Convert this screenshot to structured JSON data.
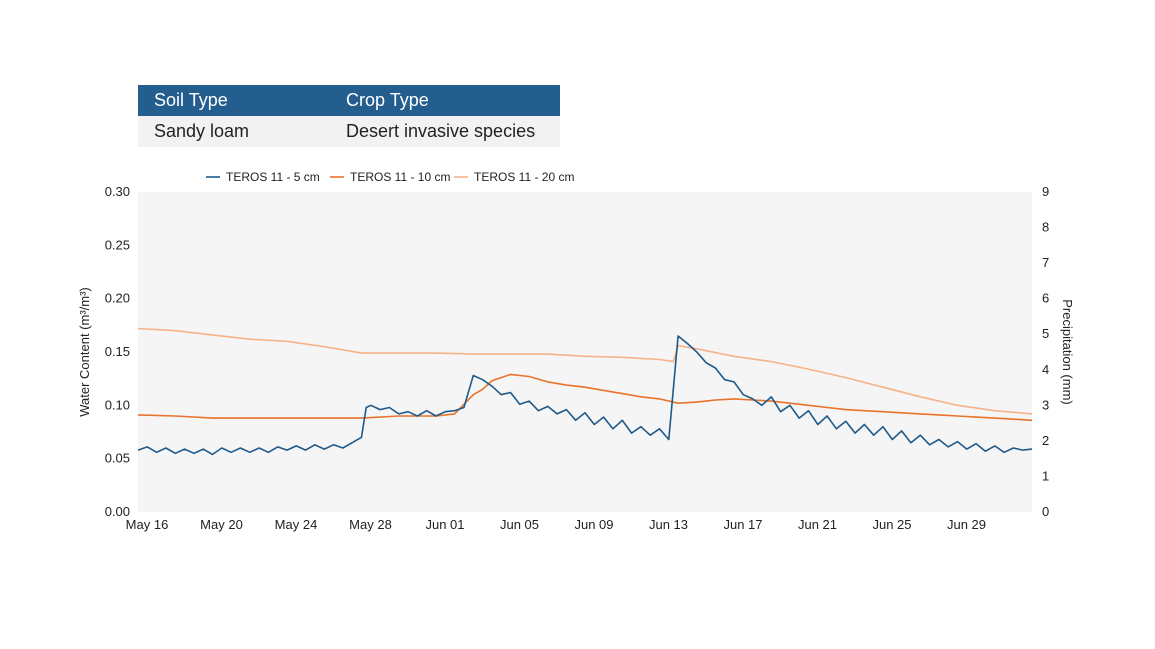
{
  "info_table": {
    "headers": [
      "Soil Type",
      "Crop Type"
    ],
    "values": [
      "Sandy loam",
      "Desert invasive species"
    ]
  },
  "colors": {
    "s5": "#1f5a8a",
    "s10": "#e8732a",
    "s20": "#f5b387",
    "plot_bg": "#f5f5f5",
    "table_header": "#245e8f"
  },
  "chart_data": {
    "type": "line",
    "xlabel": "",
    "ylabel": "Water Content (m³/m³)",
    "y2label": "Precipitation (mm)",
    "ylim": [
      0,
      0.3
    ],
    "y2lim": [
      0,
      9
    ],
    "yticks": [
      "0.00",
      "0.05",
      "0.10",
      "0.15",
      "0.20",
      "0.25",
      "0.30"
    ],
    "y2ticks": [
      "0",
      "1",
      "2",
      "3",
      "4",
      "5",
      "6",
      "7",
      "8",
      "9"
    ],
    "xlim": [
      "2023-05-16",
      "2023-07-03"
    ],
    "xticks": [
      {
        "date": "2023-05-16",
        "label": "May 16"
      },
      {
        "date": "2023-05-20",
        "label": "May 20"
      },
      {
        "date": "2023-05-24",
        "label": "May 24"
      },
      {
        "date": "2023-05-28",
        "label": "May 28"
      },
      {
        "date": "2023-06-01",
        "label": "Jun 01"
      },
      {
        "date": "2023-06-05",
        "label": "Jun 05"
      },
      {
        "date": "2023-06-09",
        "label": "Jun 09"
      },
      {
        "date": "2023-06-13",
        "label": "Jun 13"
      },
      {
        "date": "2023-06-17",
        "label": "Jun 17"
      },
      {
        "date": "2023-06-21",
        "label": "Jun 21"
      },
      {
        "date": "2023-06-25",
        "label": "Jun 25"
      },
      {
        "date": "2023-06-29",
        "label": "Jun 29"
      }
    ],
    "legend_position": "top-left",
    "series": [
      {
        "name": "TEROS 11 - 5 cm",
        "color": "#1f5a8a",
        "points": [
          [
            "2023-05-16",
            0.058
          ],
          [
            "2023-05-16T12:00",
            0.061
          ],
          [
            "2023-05-17",
            0.056
          ],
          [
            "2023-05-17T12:00",
            0.06
          ],
          [
            "2023-05-18",
            0.055
          ],
          [
            "2023-05-18T12:00",
            0.059
          ],
          [
            "2023-05-19",
            0.055
          ],
          [
            "2023-05-19T12:00",
            0.059
          ],
          [
            "2023-05-20",
            0.054
          ],
          [
            "2023-05-20T12:00",
            0.06
          ],
          [
            "2023-05-21",
            0.056
          ],
          [
            "2023-05-21T12:00",
            0.06
          ],
          [
            "2023-05-22",
            0.056
          ],
          [
            "2023-05-22T12:00",
            0.06
          ],
          [
            "2023-05-23",
            0.056
          ],
          [
            "2023-05-23T12:00",
            0.061
          ],
          [
            "2023-05-24",
            0.058
          ],
          [
            "2023-05-24T12:00",
            0.062
          ],
          [
            "2023-05-25",
            0.058
          ],
          [
            "2023-05-25T12:00",
            0.063
          ],
          [
            "2023-05-26",
            0.059
          ],
          [
            "2023-05-26T12:00",
            0.063
          ],
          [
            "2023-05-27",
            0.06
          ],
          [
            "2023-05-27T12:00",
            0.065
          ],
          [
            "2023-05-28",
            0.07
          ],
          [
            "2023-05-28T06:00",
            0.098
          ],
          [
            "2023-05-28T12:00",
            0.1
          ],
          [
            "2023-05-29",
            0.096
          ],
          [
            "2023-05-29T12:00",
            0.098
          ],
          [
            "2023-05-30",
            0.092
          ],
          [
            "2023-05-30T12:00",
            0.094
          ],
          [
            "2023-05-31",
            0.09
          ],
          [
            "2023-05-31T12:00",
            0.095
          ],
          [
            "2023-06-01",
            0.09
          ],
          [
            "2023-06-01T12:00",
            0.094
          ],
          [
            "2023-06-02",
            0.095
          ],
          [
            "2023-06-02T12:00",
            0.098
          ],
          [
            "2023-06-03",
            0.128
          ],
          [
            "2023-06-03T12:00",
            0.124
          ],
          [
            "2023-06-04",
            0.118
          ],
          [
            "2023-06-04T12:00",
            0.11
          ],
          [
            "2023-06-05",
            0.112
          ],
          [
            "2023-06-05T12:00",
            0.101
          ],
          [
            "2023-06-06",
            0.104
          ],
          [
            "2023-06-06T12:00",
            0.095
          ],
          [
            "2023-06-07",
            0.099
          ],
          [
            "2023-06-07T12:00",
            0.092
          ],
          [
            "2023-06-08",
            0.096
          ],
          [
            "2023-06-08T12:00",
            0.086
          ],
          [
            "2023-06-09",
            0.093
          ],
          [
            "2023-06-09T12:00",
            0.082
          ],
          [
            "2023-06-10",
            0.089
          ],
          [
            "2023-06-10T12:00",
            0.078
          ],
          [
            "2023-06-11",
            0.086
          ],
          [
            "2023-06-11T12:00",
            0.074
          ],
          [
            "2023-06-12",
            0.08
          ],
          [
            "2023-06-12T12:00",
            0.072
          ],
          [
            "2023-06-13",
            0.078
          ],
          [
            "2023-06-13T12:00",
            0.068
          ],
          [
            "2023-06-14",
            0.165
          ],
          [
            "2023-06-14T12:00",
            0.158
          ],
          [
            "2023-06-15",
            0.15
          ],
          [
            "2023-06-15T12:00",
            0.14
          ],
          [
            "2023-06-16",
            0.135
          ],
          [
            "2023-06-16T12:00",
            0.124
          ],
          [
            "2023-06-17",
            0.122
          ],
          [
            "2023-06-17T12:00",
            0.11
          ],
          [
            "2023-06-18",
            0.106
          ],
          [
            "2023-06-18T12:00",
            0.1
          ],
          [
            "2023-06-19",
            0.108
          ],
          [
            "2023-06-19T12:00",
            0.094
          ],
          [
            "2023-06-20",
            0.1
          ],
          [
            "2023-06-20T12:00",
            0.088
          ],
          [
            "2023-06-21",
            0.095
          ],
          [
            "2023-06-21T12:00",
            0.082
          ],
          [
            "2023-06-22",
            0.09
          ],
          [
            "2023-06-22T12:00",
            0.078
          ],
          [
            "2023-06-23",
            0.085
          ],
          [
            "2023-06-23T12:00",
            0.074
          ],
          [
            "2023-06-24",
            0.082
          ],
          [
            "2023-06-24T12:00",
            0.072
          ],
          [
            "2023-06-25",
            0.08
          ],
          [
            "2023-06-25T12:00",
            0.068
          ],
          [
            "2023-06-26",
            0.076
          ],
          [
            "2023-06-26T12:00",
            0.065
          ],
          [
            "2023-06-27",
            0.072
          ],
          [
            "2023-06-27T12:00",
            0.063
          ],
          [
            "2023-06-28",
            0.068
          ],
          [
            "2023-06-28T12:00",
            0.061
          ],
          [
            "2023-06-29",
            0.066
          ],
          [
            "2023-06-29T12:00",
            0.059
          ],
          [
            "2023-06-30",
            0.064
          ],
          [
            "2023-06-30T12:00",
            0.057
          ],
          [
            "2023-07-01",
            0.062
          ],
          [
            "2023-07-01T12:00",
            0.056
          ],
          [
            "2023-07-02",
            0.06
          ],
          [
            "2023-07-02T12:00",
            0.058
          ],
          [
            "2023-07-03",
            0.059
          ]
        ]
      },
      {
        "name": "TEROS 11 - 10 cm",
        "color": "#e8732a",
        "points": [
          [
            "2023-05-16",
            0.091
          ],
          [
            "2023-05-18",
            0.09
          ],
          [
            "2023-05-20",
            0.088
          ],
          [
            "2023-05-22",
            0.088
          ],
          [
            "2023-05-24",
            0.088
          ],
          [
            "2023-05-26",
            0.088
          ],
          [
            "2023-05-28",
            0.088
          ],
          [
            "2023-05-30",
            0.09
          ],
          [
            "2023-06-01",
            0.09
          ],
          [
            "2023-06-02",
            0.092
          ],
          [
            "2023-06-03",
            0.11
          ],
          [
            "2023-06-03T12:00",
            0.115
          ],
          [
            "2023-06-04",
            0.123
          ],
          [
            "2023-06-05",
            0.129
          ],
          [
            "2023-06-06",
            0.127
          ],
          [
            "2023-06-07",
            0.122
          ],
          [
            "2023-06-08",
            0.119
          ],
          [
            "2023-06-09",
            0.117
          ],
          [
            "2023-06-10",
            0.114
          ],
          [
            "2023-06-11",
            0.111
          ],
          [
            "2023-06-12",
            0.108
          ],
          [
            "2023-06-13",
            0.106
          ],
          [
            "2023-06-14",
            0.102
          ],
          [
            "2023-06-15",
            0.103
          ],
          [
            "2023-06-16",
            0.105
          ],
          [
            "2023-06-17",
            0.106
          ],
          [
            "2023-06-18",
            0.105
          ],
          [
            "2023-06-19",
            0.104
          ],
          [
            "2023-06-20",
            0.102
          ],
          [
            "2023-06-21",
            0.1
          ],
          [
            "2023-06-22",
            0.098
          ],
          [
            "2023-06-23",
            0.096
          ],
          [
            "2023-06-24",
            0.095
          ],
          [
            "2023-06-25",
            0.094
          ],
          [
            "2023-06-26",
            0.093
          ],
          [
            "2023-06-27",
            0.092
          ],
          [
            "2023-06-28",
            0.091
          ],
          [
            "2023-06-29",
            0.09
          ],
          [
            "2023-06-30",
            0.089
          ],
          [
            "2023-07-01",
            0.088
          ],
          [
            "2023-07-02",
            0.087
          ],
          [
            "2023-07-03",
            0.086
          ]
        ]
      },
      {
        "name": "TEROS 11 - 20 cm",
        "color": "#f5b387",
        "points": [
          [
            "2023-05-16",
            0.172
          ],
          [
            "2023-05-18",
            0.17
          ],
          [
            "2023-05-20",
            0.166
          ],
          [
            "2023-05-22",
            0.162
          ],
          [
            "2023-05-24",
            0.16
          ],
          [
            "2023-05-26",
            0.155
          ],
          [
            "2023-05-28",
            0.149
          ],
          [
            "2023-05-30",
            0.149
          ],
          [
            "2023-06-01",
            0.149
          ],
          [
            "2023-06-03",
            0.148
          ],
          [
            "2023-06-05",
            0.148
          ],
          [
            "2023-06-07",
            0.148
          ],
          [
            "2023-06-09",
            0.146
          ],
          [
            "2023-06-11",
            0.145
          ],
          [
            "2023-06-13",
            0.143
          ],
          [
            "2023-06-13T18:00",
            0.141
          ],
          [
            "2023-06-14",
            0.156
          ],
          [
            "2023-06-15",
            0.153
          ],
          [
            "2023-06-17",
            0.146
          ],
          [
            "2023-06-19",
            0.141
          ],
          [
            "2023-06-21",
            0.134
          ],
          [
            "2023-06-23",
            0.126
          ],
          [
            "2023-06-25",
            0.117
          ],
          [
            "2023-06-27",
            0.108
          ],
          [
            "2023-06-29",
            0.1
          ],
          [
            "2023-07-01",
            0.095
          ],
          [
            "2023-07-03",
            0.092
          ]
        ]
      }
    ]
  }
}
